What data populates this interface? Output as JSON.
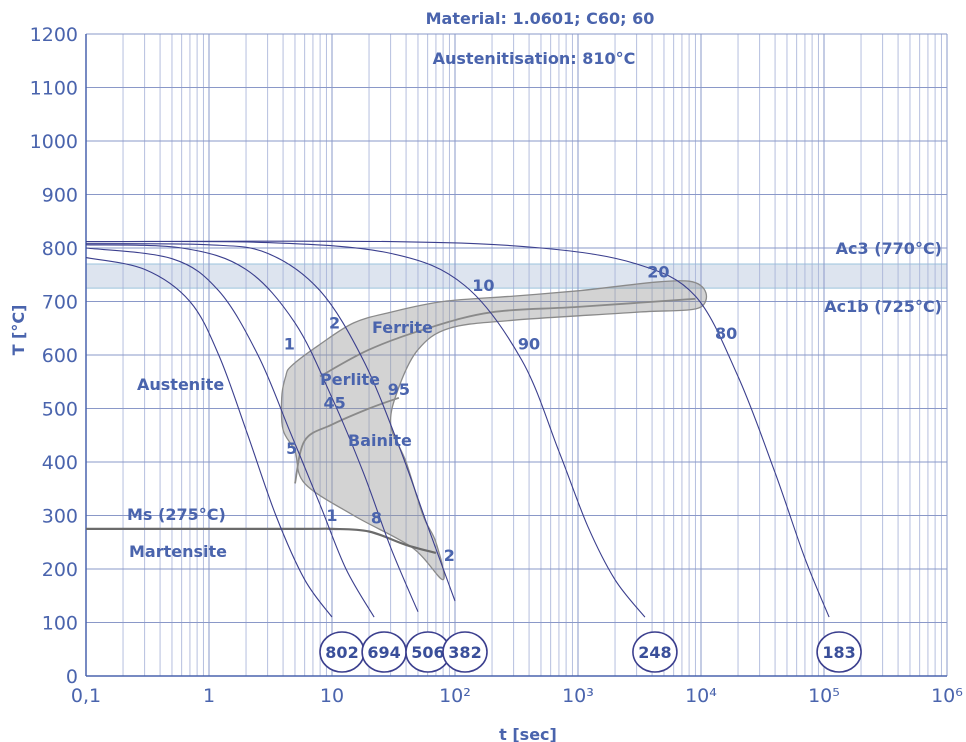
{
  "chart_data": {
    "type": "line",
    "title": "Material: 1.0601; C60; 60",
    "subtitle": "Austenitisation: 810°C",
    "xlabel": "t [sec]",
    "ylabel": "T [°C]",
    "xscale": "log",
    "xlim": [
      0.1,
      1000000
    ],
    "ylim": [
      0,
      1200
    ],
    "grid": true,
    "x_tick_labels": [
      "0,1",
      "1",
      "10",
      "10²",
      "10³",
      "10⁴",
      "10⁵",
      "10⁶"
    ],
    "y_tick_labels": [
      "0",
      "100",
      "200",
      "300",
      "400",
      "500",
      "600",
      "700",
      "800",
      "900",
      "1000",
      "1100",
      "1200"
    ],
    "ac3": {
      "label": "Ac3 (770°C)",
      "value": 770
    },
    "ac1b": {
      "label": "Ac1b (725°C)",
      "value": 725
    },
    "ms": {
      "label": "Ms (275°C)",
      "value": 275
    },
    "phase_labels": {
      "austenite": "Austenite",
      "martensite": "Martensite",
      "ferrite": "Ferrite",
      "perlite": "Perlite",
      "bainite": "Bainite"
    },
    "cooling_curves": [
      {
        "hardness": "802",
        "points": [
          [
            0.1,
            782
          ],
          [
            0.3,
            760
          ],
          [
            0.7,
            700
          ],
          [
            1.2,
            600
          ],
          [
            2,
            460
          ],
          [
            3.5,
            300
          ],
          [
            6,
            180
          ],
          [
            10,
            110
          ]
        ]
      },
      {
        "hardness": "694",
        "points": [
          [
            0.1,
            800
          ],
          [
            0.5,
            780
          ],
          [
            1.2,
            720
          ],
          [
            2.5,
            600
          ],
          [
            4.5,
            460
          ],
          [
            8,
            320
          ],
          [
            13,
            200
          ],
          [
            22,
            110
          ]
        ]
      },
      {
        "hardness": "506",
        "points": [
          [
            0.1,
            806
          ],
          [
            0.6,
            800
          ],
          [
            2,
            760
          ],
          [
            5,
            660
          ],
          [
            10,
            520
          ],
          [
            18,
            380
          ],
          [
            30,
            240
          ],
          [
            50,
            120
          ]
        ]
      },
      {
        "hardness": "382",
        "points": [
          [
            0.1,
            808
          ],
          [
            1,
            806
          ],
          [
            3,
            790
          ],
          [
            8,
            720
          ],
          [
            18,
            590
          ],
          [
            35,
            430
          ],
          [
            60,
            280
          ],
          [
            100,
            140
          ]
        ]
      },
      {
        "hardness": "248",
        "points": [
          [
            0.1,
            812
          ],
          [
            3,
            810
          ],
          [
            30,
            790
          ],
          [
            120,
            730
          ],
          [
            350,
            590
          ],
          [
            700,
            420
          ],
          [
            1200,
            280
          ],
          [
            2000,
            180
          ],
          [
            3500,
            110
          ]
        ]
      },
      {
        "hardness": "183",
        "points": [
          [
            0.1,
            812
          ],
          [
            30,
            812
          ],
          [
            500,
            800
          ],
          [
            3000,
            770
          ],
          [
            9000,
            710
          ],
          [
            20000,
            560
          ],
          [
            40000,
            380
          ],
          [
            70000,
            220
          ],
          [
            110000,
            110
          ]
        ]
      }
    ],
    "hardness_values": [
      "802",
      "694",
      "506",
      "382",
      "248",
      "183"
    ],
    "transformation_regions": {
      "outer_band": [
        [
          4.7,
          580
        ],
        [
          8,
          620
        ],
        [
          15,
          660
        ],
        [
          30,
          680
        ],
        [
          80,
          700
        ],
        [
          300,
          710
        ],
        [
          1000,
          720
        ],
        [
          8000,
          738
        ],
        [
          10000,
          690
        ],
        [
          3000,
          680
        ],
        [
          300,
          665
        ],
        [
          90,
          650
        ],
        [
          50,
          610
        ],
        [
          35,
          540
        ],
        [
          30,
          470
        ],
        [
          40,
          400
        ],
        [
          55,
          300
        ],
        [
          70,
          250
        ],
        [
          80,
          180
        ],
        [
          45,
          240
        ],
        [
          15,
          300
        ],
        [
          6,
          360
        ],
        [
          5,
          420
        ],
        [
          4,
          460
        ],
        [
          3.9,
          520
        ],
        [
          4.2,
          560
        ]
      ],
      "ferrite_perlite_boundary": [
        [
          8,
          560
        ],
        [
          20,
          610
        ],
        [
          60,
          650
        ],
        [
          200,
          680
        ],
        [
          1000,
          690
        ],
        [
          9000,
          705
        ]
      ],
      "bainite_start": [
        [
          5,
          360
        ],
        [
          6,
          440
        ],
        [
          10,
          470
        ],
        [
          20,
          500
        ],
        [
          35,
          520
        ]
      ],
      "ms_line": [
        [
          0.1,
          275
        ],
        [
          5,
          275
        ],
        [
          10,
          275
        ],
        [
          20,
          270
        ],
        [
          40,
          245
        ],
        [
          70,
          230
        ]
      ]
    },
    "curve_percent_labels": [
      {
        "text": "1",
        "x": 4.5,
        "y": 610
      },
      {
        "text": "2",
        "x": 10.5,
        "y": 650
      },
      {
        "text": "45",
        "x": 10.5,
        "y": 500
      },
      {
        "text": "95",
        "x": 35,
        "y": 525
      },
      {
        "text": "5",
        "x": 4.7,
        "y": 415
      },
      {
        "text": "1",
        "x": 10,
        "y": 290
      },
      {
        "text": "8",
        "x": 23,
        "y": 285
      },
      {
        "text": "2",
        "x": 90,
        "y": 215
      },
      {
        "text": "10",
        "x": 170,
        "y": 720
      },
      {
        "text": "90",
        "x": 400,
        "y": 610
      },
      {
        "text": "20",
        "x": 4500,
        "y": 745
      },
      {
        "text": "80",
        "x": 16000,
        "y": 630
      }
    ]
  }
}
